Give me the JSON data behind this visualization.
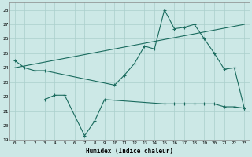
{
  "line1_x": [
    0,
    1,
    2,
    3,
    10,
    11,
    12,
    13,
    14,
    15,
    16,
    17,
    18,
    19,
    20,
    21,
    22,
    23
  ],
  "line1_y": [
    24.5,
    24.0,
    23.8,
    23.8,
    22.8,
    23.5,
    24.3,
    25.5,
    25.3,
    28.0,
    26.7,
    26.8,
    27.0,
    26.0,
    25.0,
    23.9,
    24.0,
    21.2
  ],
  "line2_x": [
    0,
    23
  ],
  "line2_y": [
    24.0,
    27.0
  ],
  "line3_x": [
    3,
    4,
    5,
    7,
    8,
    9,
    15,
    16,
    17,
    18,
    19,
    20,
    21,
    22,
    23
  ],
  "line3_y": [
    21.8,
    22.1,
    22.1,
    19.3,
    20.3,
    21.8,
    21.5,
    21.5,
    21.5,
    21.5,
    21.5,
    21.5,
    21.3,
    21.3,
    21.2
  ],
  "bg_color": "#cce8e6",
  "line_color": "#1a6b5e",
  "grid_color": "#aacfcc",
  "xlabel": "Humidex (Indice chaleur)",
  "ylim": [
    19,
    28.5
  ],
  "xlim": [
    -0.5,
    23.5
  ],
  "yticks": [
    19,
    20,
    21,
    22,
    23,
    24,
    25,
    26,
    27,
    28
  ],
  "xticks": [
    0,
    1,
    2,
    3,
    4,
    5,
    6,
    7,
    8,
    9,
    10,
    11,
    12,
    13,
    14,
    15,
    16,
    17,
    18,
    19,
    20,
    21,
    22,
    23
  ]
}
